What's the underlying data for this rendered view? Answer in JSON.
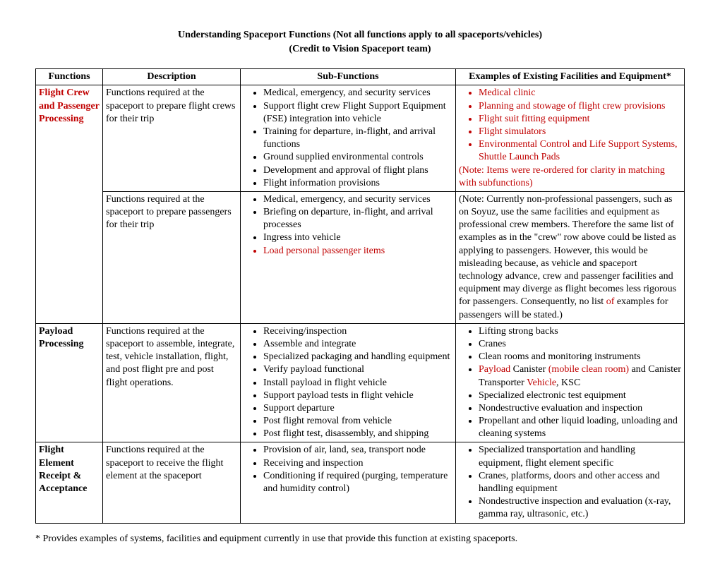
{
  "title": {
    "line1": "Understanding Spaceport Functions (Not all functions apply to all spaceports/vehicles)",
    "line2": "(Credit to Vision Spaceport team)"
  },
  "headers": {
    "c1": "Functions",
    "c2": "Description",
    "c3": "Sub-Functions",
    "c4": "Examples of Existing Facilities and Equipment*"
  },
  "row1": {
    "func": "Flight Crew and Passenger Processing",
    "desc": "Functions required at the spaceport to prepare flight crews for their trip",
    "sub": {
      "i1": "Medical, emergency, and security services",
      "i2": "Support flight crew Flight Support Equipment (FSE) integration into vehicle",
      "i3": "Training for departure, in-flight, and arrival functions",
      "i4": "Ground supplied environmental controls",
      "i5": "Development and approval of flight plans",
      "i6": "Flight information provisions"
    },
    "ex": {
      "i1": "Medical clinic",
      "i2": "Planning and stowage of flight crew provisions",
      "i3": "Flight suit fitting equipment",
      "i4": "Flight simulators",
      "i5": "Environmental Control and Life Support Systems, Shuttle Launch Pads",
      "note": "(Note: Items were re-ordered for clarity in matching with subfunctions)"
    }
  },
  "row2": {
    "desc": "Functions required at the spaceport to prepare passengers for their trip",
    "sub": {
      "i1": "Medical, emergency, and security services",
      "i2": "Briefing on departure, in-flight, and arrival processes",
      "i3": "Ingress into vehicle",
      "i4": "Load personal passenger items"
    },
    "ex": {
      "p1": "(Note:  Currently non-professional passengers, such as on Soyuz, use the same facilities and equipment as professional crew members.  Therefore the same list of examples as in the \"crew\" row above could be listed as applying to passengers.  However, this would be misleading because, as vehicle and spaceport technology advance, crew and passenger facilities and equipment may diverge as flight becomes less rigorous for passengers.  Consequently, no list ",
      "of": "of",
      "p2": " examples for passengers will be stated.)"
    }
  },
  "row3": {
    "func": "Payload Processing",
    "desc": "Functions required at the spaceport to assemble, integrate, test, vehicle installation, flight, and post flight pre and post flight operations.",
    "sub": {
      "i1": "Receiving/inspection",
      "i2": "Assemble and integrate",
      "i3": "Specialized packaging and handling equipment",
      "i4": "Verify payload functional",
      "i5": "Install payload in flight vehicle",
      "i6": "Support payload tests in flight vehicle",
      "i7": "Support departure",
      "i8": "Post flight removal from vehicle",
      "i9": "Post flight test, disassembly, and shipping"
    },
    "ex": {
      "i1": "Lifting strong backs",
      "i2": "Cranes",
      "i3": "Clean rooms and monitoring instruments",
      "i4a": "Payload",
      "i4b": " Canister ",
      "i4c": "(mobile clean room)",
      "i4d": " and Canister Transporter ",
      "i4e": "Vehicle",
      "i4f": ", KSC",
      "i5": "Specialized electronic test equipment",
      "i6": "Nondestructive evaluation and inspection",
      "i7": "Propellant and other liquid loading, unloading and cleaning systems"
    }
  },
  "row4": {
    "func": "Flight Element Receipt & Acceptance",
    "desc": "Functions required at the spaceport to receive the flight element at the spaceport",
    "sub": {
      "i1": "Provision of air, land, sea, transport node",
      "i2": "Receiving and inspection",
      "i3": "Conditioning if required (purging, temperature and humidity control)"
    },
    "ex": {
      "i1": "Specialized transportation and handling equipment, flight element specific",
      "i2": "Cranes, platforms, doors and other access and handling equipment",
      "i3": "Nondestructive inspection and evaluation (x-ray, gamma ray, ultrasonic, etc.)"
    }
  },
  "footnote": "* Provides examples of systems, facilities and equipment currently in use that provide this function at existing spaceports."
}
